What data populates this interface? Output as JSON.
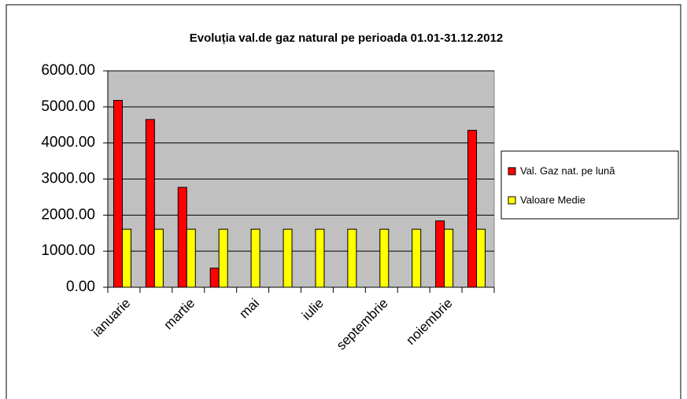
{
  "chart_data": {
    "type": "bar",
    "title": "Evoluția val.de gaz natural pe perioada 01.01-31.12.2012",
    "categories": [
      "ianuarie",
      null,
      "martie",
      null,
      "mai",
      null,
      "iulie",
      null,
      "septembrie",
      null,
      "noiembrie",
      null
    ],
    "series": [
      {
        "name": "Val. Gaz nat. pe lună",
        "color": "#ff0000",
        "values": [
          5180,
          4650,
          2770,
          530,
          0,
          0,
          0,
          0,
          0,
          0,
          1840,
          4350
        ]
      },
      {
        "name": "Valoare Medie",
        "color": "#ffff00",
        "values": [
          1610,
          1610,
          1610,
          1610,
          1610,
          1610,
          1610,
          1610,
          1610,
          1610,
          1610,
          1610
        ]
      }
    ],
    "ylim": [
      0,
      6000
    ],
    "yticks": [
      {
        "value": 0,
        "label": "0.00"
      },
      {
        "value": 1000,
        "label": "1000.00"
      },
      {
        "value": 2000,
        "label": "2000.00"
      },
      {
        "value": 3000,
        "label": "3000.00"
      },
      {
        "value": 4000,
        "label": "4000.00"
      },
      {
        "value": 5000,
        "label": "5000.00"
      },
      {
        "value": 6000,
        "label": "6000.00"
      }
    ],
    "grid": true,
    "plot_background": "#c0c0c0",
    "legend": "right"
  }
}
